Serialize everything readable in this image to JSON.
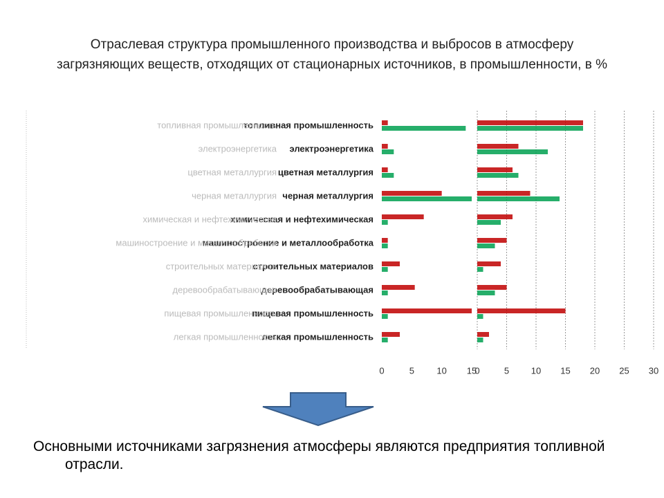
{
  "title": "Отраслевая структура промышленного производства и выбросов в атмосферу загрязняющих веществ, отходящих от стационарных источников, в промышленности, в %",
  "conclusion": "Основными источниками загрязнения атмосферы являются предприятия топливной отрасли.",
  "chart_data": [
    {
      "type": "hbar",
      "categories": [
        "топливная промышленность",
        "электроэнергетика",
        "цветная металлургия",
        "черная металлургия",
        "химическая и нефтехимическая",
        "машиностроение и металлообработка",
        "строительных материалов",
        "деревообрабатывающая",
        "пищевая промышленность",
        "легкая промышленность"
      ],
      "series": [
        {
          "color": "#c00000",
          "values": [
            1,
            1,
            1,
            10,
            7,
            1,
            3,
            5.5,
            15,
            3
          ]
        },
        {
          "color": "#00a050",
          "values": [
            14,
            2,
            2,
            15,
            1,
            1,
            1,
            1,
            1,
            1
          ]
        }
      ],
      "xlim": [
        0,
        15
      ],
      "xticks": [
        0,
        5,
        10,
        15
      ]
    },
    {
      "type": "hbar",
      "categories": [
        "топливная промышленность",
        "электроэнергетика",
        "цветная металлургия",
        "черная металлургия",
        "химическая и нефтехимическая",
        "машиностроение и металлообработка",
        "строительных материалов",
        "деревообрабатывающая",
        "пищевая промышленность",
        "легкая промышленность"
      ],
      "series": [
        {
          "color": "#c00000",
          "values": [
            18,
            7,
            6,
            9,
            6,
            5,
            4,
            5,
            15,
            2
          ]
        },
        {
          "color": "#00a050",
          "values": [
            18,
            12,
            7,
            14,
            4,
            3,
            1,
            3,
            1,
            1
          ]
        }
      ],
      "xlim": [
        0,
        30
      ],
      "xticks": [
        0,
        5,
        10,
        15,
        20,
        25,
        30
      ],
      "grid": true
    }
  ]
}
